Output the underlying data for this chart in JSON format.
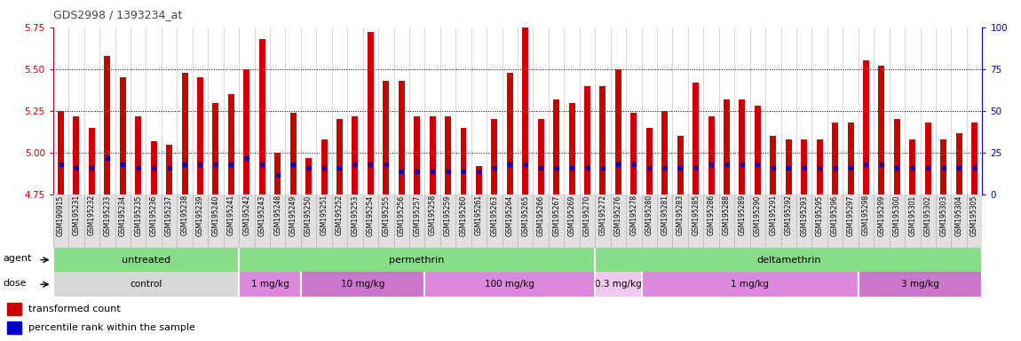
{
  "title": "GDS2998 / 1393234_at",
  "samples": [
    "GSM190915",
    "GSM195231",
    "GSM195232",
    "GSM195233",
    "GSM195234",
    "GSM195235",
    "GSM195236",
    "GSM195237",
    "GSM195238",
    "GSM195239",
    "GSM195240",
    "GSM195241",
    "GSM195242",
    "GSM195243",
    "GSM195248",
    "GSM195249",
    "GSM195250",
    "GSM195251",
    "GSM195252",
    "GSM195253",
    "GSM195254",
    "GSM195255",
    "GSM195256",
    "GSM195257",
    "GSM195258",
    "GSM195259",
    "GSM195260",
    "GSM195261",
    "GSM195263",
    "GSM195264",
    "GSM195265",
    "GSM195266",
    "GSM195267",
    "GSM195269",
    "GSM195270",
    "GSM195272",
    "GSM195276",
    "GSM195278",
    "GSM195280",
    "GSM195281",
    "GSM195283",
    "GSM195285",
    "GSM195286",
    "GSM195288",
    "GSM195289",
    "GSM195290",
    "GSM195291",
    "GSM195292",
    "GSM195293",
    "GSM195295",
    "GSM195296",
    "GSM195297",
    "GSM195298",
    "GSM195299",
    "GSM195300",
    "GSM195301",
    "GSM195302",
    "GSM195303",
    "GSM195304",
    "GSM195305"
  ],
  "red_values": [
    5.25,
    5.22,
    5.15,
    5.58,
    5.45,
    5.22,
    5.07,
    5.05,
    5.48,
    5.45,
    5.3,
    5.35,
    5.5,
    5.68,
    5.0,
    5.24,
    4.97,
    5.08,
    5.2,
    5.22,
    5.72,
    5.43,
    5.43,
    5.22,
    5.22,
    5.22,
    5.15,
    4.92,
    5.2,
    5.48,
    5.75,
    5.2,
    5.32,
    5.3,
    5.4,
    5.4,
    5.5,
    5.24,
    5.15,
    5.25,
    5.1,
    5.42,
    5.22,
    5.32,
    5.32,
    5.28,
    5.1,
    5.08,
    5.08,
    5.08,
    5.18,
    5.18,
    5.55,
    5.52,
    5.2,
    5.08,
    5.18,
    5.08,
    5.12,
    5.18
  ],
  "blue_percentiles": [
    18,
    16,
    16,
    22,
    18,
    16,
    16,
    16,
    18,
    18,
    18,
    18,
    22,
    18,
    12,
    18,
    16,
    16,
    16,
    18,
    18,
    18,
    14,
    14,
    14,
    14,
    14,
    14,
    16,
    18,
    18,
    16,
    16,
    16,
    16,
    16,
    18,
    18,
    16,
    16,
    16,
    16,
    18,
    18,
    18,
    18,
    16,
    16,
    16,
    16,
    16,
    16,
    18,
    18,
    16,
    16,
    16,
    16,
    16,
    16
  ],
  "ylim": [
    4.75,
    5.75
  ],
  "yticks_left": [
    4.75,
    5.0,
    5.25,
    5.5,
    5.75
  ],
  "yticks_right": [
    0,
    25,
    50,
    75,
    100
  ],
  "y2lim": [
    0,
    100
  ],
  "agent_groups": [
    {
      "label": "untreated",
      "start": 0,
      "end": 12
    },
    {
      "label": "permethrin",
      "start": 12,
      "end": 35
    },
    {
      "label": "deltamethrin",
      "start": 35,
      "end": 60
    }
  ],
  "dose_groups": [
    {
      "label": "control",
      "start": 0,
      "end": 12,
      "color": "#d8d8d8"
    },
    {
      "label": "1 mg/kg",
      "start": 12,
      "end": 16,
      "color": "#dd88dd"
    },
    {
      "label": "10 mg/kg",
      "start": 16,
      "end": 24,
      "color": "#cc77cc"
    },
    {
      "label": "100 mg/kg",
      "start": 24,
      "end": 35,
      "color": "#dd88dd"
    },
    {
      "label": "0.3 mg/kg",
      "start": 35,
      "end": 38,
      "color": "#f0c8f0"
    },
    {
      "label": "1 mg/kg",
      "start": 38,
      "end": 52,
      "color": "#dd88dd"
    },
    {
      "label": "3 mg/kg",
      "start": 52,
      "end": 60,
      "color": "#cc77cc"
    }
  ],
  "agent_color": "#88dd88",
  "bar_color": "#cc0000",
  "blue_color": "#0000cc",
  "bar_bottom": 4.75,
  "title_color": "#444444",
  "left_axis_color": "#cc0000",
  "right_axis_color": "#0000cc",
  "legend_items": [
    {
      "label": "transformed count",
      "color": "#cc0000"
    },
    {
      "label": "percentile rank within the sample",
      "color": "#0000cc"
    }
  ]
}
